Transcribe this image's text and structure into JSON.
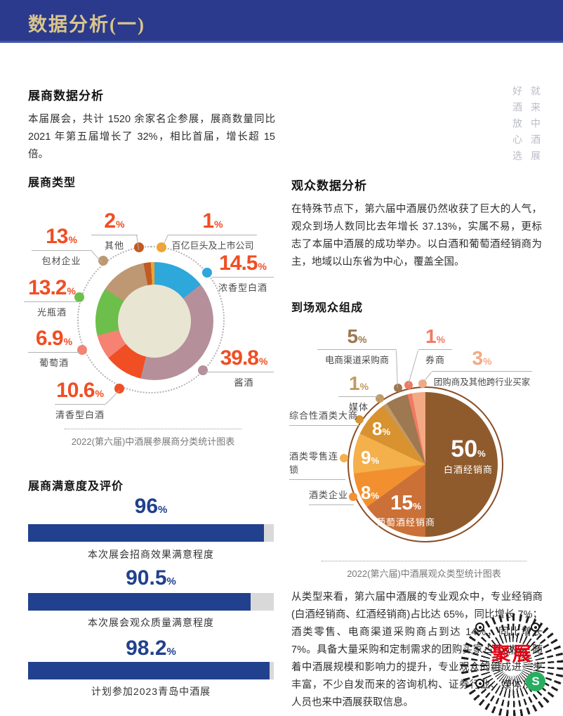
{
  "header": {
    "title": "数据分析(一)"
  },
  "slogan": {
    "line_right": "就来中酒展",
    "line_left": "好酒放心选"
  },
  "colors": {
    "header_bg": "#2b3a8c",
    "title_gold": "#d9c58c",
    "donut_number": "#f04e23",
    "donut_hole": "#e9e5d3",
    "qr_brand_red": "#e60012",
    "wechat_green": "#27ae60"
  },
  "exhibitor": {
    "title": "展商数据分析",
    "body": "本届展会，共计 1520 余家名企参展，展商数量同比 2021 年第五届增长了 32%，相比首届，增长超 15 倍。",
    "chart_title": "展商类型"
  },
  "satisfaction": {
    "title": "展商满意度及评价"
  },
  "audience": {
    "title": "观众数据分析",
    "body": "在特殊节点下，第六届中酒展仍然收获了巨大的人气，观众到场人数同比去年增长 37.13%，实属不易，更标志了本届中酒展的成功举办。以白酒和葡萄酒经销商为主，地域以山东省为中心，覆盖全国。",
    "chart_title": "到场观众组成",
    "body2": "从类型来看，第六届中酒展的专业观众中，专业经销商(白酒经销商、红酒经销商)占比达 65%，同比增长 7%；酒类零售、电商渠道采购商占到达 14%，同比增长 7%。具备大量采购和定制需求的团购买家占比 3%。随着中酒展规模和影响力的提升，专业观众的组成进一步丰富，不少自发而来的咨询机构、证券行业、媒体从业人员也来中酒展获取信息。"
  },
  "qr": {
    "brand": "聚展",
    "wechat_glyph": "S"
  },
  "chart_data": [
    {
      "type": "pie",
      "variant": "donut",
      "title": "展商类型",
      "caption": "2022(第六届)中酒展参展商分类统计图表",
      "unit": "%",
      "legend_position": "around",
      "segments": [
        {
          "label": "浓香型白酒",
          "value": 14.5,
          "color": "#2ea7db"
        },
        {
          "label": "酱酒",
          "value": 39.8,
          "color": "#b5909a"
        },
        {
          "label": "清香型白酒",
          "value": 10.6,
          "color": "#f04f23"
        },
        {
          "label": "葡萄酒",
          "value": 6.9,
          "color": "#f58272"
        },
        {
          "label": "光瓶酒",
          "value": 13.2,
          "color": "#6cbf4a"
        },
        {
          "label": "包材企业",
          "value": 13,
          "color": "#bd9872"
        },
        {
          "label": "其他",
          "value": 2,
          "color": "#c35a21"
        },
        {
          "label": "百亿巨头及上市公司",
          "value": 1,
          "color": "#f2a42e"
        }
      ]
    },
    {
      "type": "pie",
      "variant": "pie",
      "title": "到场观众组成",
      "caption": "2022(第六届)中酒展观众类型统计图表",
      "unit": "%",
      "legend_position": "around",
      "segments": [
        {
          "label": "白酒经销商",
          "value": 50,
          "color": "#8f5b2d"
        },
        {
          "label": "葡萄酒经销商",
          "value": 15,
          "color": "#cb7138"
        },
        {
          "label": "酒类企业",
          "value": 8,
          "color": "#f29030"
        },
        {
          "label": "酒类零售连锁",
          "value": 9,
          "color": "#f3b04b"
        },
        {
          "label": "综合性酒类大商",
          "value": 8,
          "color": "#d8922f"
        },
        {
          "label": "媒体",
          "value": 1,
          "color": "#c29a62"
        },
        {
          "label": "电商渠道采购商",
          "value": 5,
          "color": "#9d7850"
        },
        {
          "label": "券商",
          "value": 1,
          "color": "#f07a62"
        },
        {
          "label": "团购商及其他跨行业买家",
          "value": 3,
          "color": "#f2aa84"
        }
      ]
    },
    {
      "type": "bar",
      "title": "展商满意度及评价",
      "unit": "%",
      "xlim": [
        0,
        100
      ],
      "bar_color": "#21418e",
      "track_color": "#d9d9d9",
      "bars": [
        {
          "label": "本次展会招商效果满意程度",
          "value": 96,
          "value_text": "96"
        },
        {
          "label": "本次展会观众质量满意程度",
          "value": 90.5,
          "value_text": "90.5"
        },
        {
          "label": "计划参加2023青岛中酒展",
          "value": 98.2,
          "value_text": "98.2"
        }
      ]
    }
  ]
}
